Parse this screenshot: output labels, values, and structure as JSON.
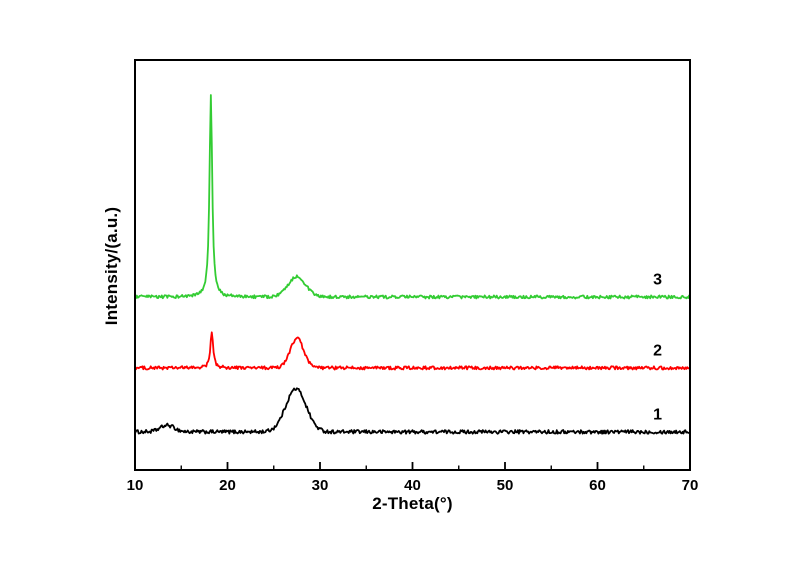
{
  "chart_data": {
    "type": "line",
    "title": "",
    "xlabel": "2-Theta(°)",
    "ylabel": "Intensity/(a.u.)",
    "xlim": [
      10,
      70
    ],
    "xticks": [
      10,
      20,
      30,
      40,
      50,
      60,
      70
    ],
    "minor_xticks": [
      15,
      25,
      35,
      45,
      55,
      65
    ],
    "yticks": [],
    "grid": false,
    "frame": true,
    "axis_color": "#000000",
    "background_color": "#ffffff",
    "legend_position": "none",
    "series_label_color": "#000000",
    "series": [
      {
        "name": "1",
        "color": "#000000",
        "baseline": 0.093,
        "noise": 0.0045,
        "peaks": [
          {
            "center": 13.5,
            "height": 0.016,
            "fwhm": 1.8,
            "shape": "gaussian"
          },
          {
            "center": 27.4,
            "height": 0.105,
            "fwhm": 2.6,
            "shape": "gaussian"
          }
        ],
        "label_x": 66.5,
        "label_dy": 0.03
      },
      {
        "name": "2",
        "color": "#ff0000",
        "baseline": 0.249,
        "noise": 0.004,
        "peaks": [
          {
            "center": 18.3,
            "height": 0.088,
            "fwhm": 0.35,
            "shape": "lorentzian"
          },
          {
            "center": 27.5,
            "height": 0.072,
            "fwhm": 1.7,
            "shape": "gaussian"
          }
        ],
        "label_x": 66.5,
        "label_dy": 0.03
      },
      {
        "name": "3",
        "color": "#33cc33",
        "baseline": 0.422,
        "noise": 0.0038,
        "peaks": [
          {
            "center": 18.2,
            "height": 0.493,
            "fwhm": 0.35,
            "shape": "lorentzian"
          },
          {
            "center": 27.5,
            "height": 0.05,
            "fwhm": 2.2,
            "shape": "gaussian"
          }
        ],
        "label_x": 66.5,
        "label_dy": 0.03
      }
    ]
  }
}
